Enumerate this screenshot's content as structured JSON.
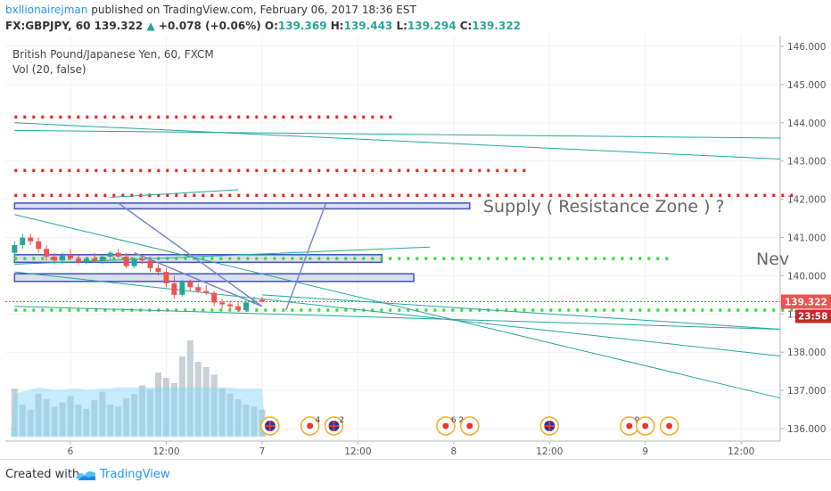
{
  "header": {
    "user": "bxllionairejman",
    "published_text": "published on TradingView.com, February 06, 2017 18:36 EST",
    "symbol": "FX:GBPJPY, 60",
    "last": "139.322",
    "change": "+0.078 (+0.06%)",
    "o_label": "O:",
    "o_val": "139.369",
    "h_label": "H:",
    "h_val": "139.443",
    "l_label": "L:",
    "l_val": "139.294",
    "c_label": "C:",
    "c_val": "139.322"
  },
  "legend": {
    "instrument": "British Pound/Japanese Yen, 60, FXCM",
    "indicator": "Vol (20, false)"
  },
  "footer": {
    "created_with": "Created with",
    "brand": "TradingView"
  },
  "colors": {
    "up": "#26a69a",
    "down": "#ef5350",
    "resistance_dots": "#ee2222",
    "support_dots": "#33dd33",
    "zone_fill": "#c5cae9",
    "zone_border": "#3f51b5",
    "trend": "#26a69a",
    "arrow": "#7986cb",
    "price_tag": "#ef5350",
    "countdown_tag": "#c62828"
  },
  "chart_data": {
    "type": "candlestick",
    "ylim": [
      135.7,
      146.3
    ],
    "y_ticks": [
      "146.000",
      "145.000",
      "144.000",
      "143.000",
      "142.000",
      "141.000",
      "140.000",
      "139.000",
      "138.000",
      "137.000",
      "136.000"
    ],
    "x_ticks": [
      "6",
      "12:00",
      "7",
      "12:00",
      "8",
      "12:00",
      "9",
      "12:00"
    ],
    "x_tick_hours": [
      0,
      12,
      24,
      36,
      48,
      60,
      72,
      84
    ],
    "last_price_tag": "139.322",
    "countdown_tag": "23:58",
    "annotations": {
      "supply_label": "Supply ( Resistance Zone ) ?",
      "cut_label": "Nev"
    },
    "candles": [
      {
        "h": -7,
        "o": 140.6,
        "hi": 140.9,
        "lo": 140.4,
        "c": 140.8
      },
      {
        "h": -6,
        "o": 140.8,
        "hi": 141.1,
        "lo": 140.7,
        "c": 141.0
      },
      {
        "h": -5,
        "o": 141.0,
        "hi": 141.1,
        "lo": 140.8,
        "c": 140.9
      },
      {
        "h": -4,
        "o": 140.9,
        "hi": 141.0,
        "lo": 140.6,
        "c": 140.7
      },
      {
        "h": -3,
        "o": 140.7,
        "hi": 140.8,
        "lo": 140.4,
        "c": 140.5
      },
      {
        "h": -2,
        "o": 140.5,
        "hi": 140.6,
        "lo": 140.3,
        "c": 140.4
      },
      {
        "h": -1,
        "o": 140.4,
        "hi": 140.6,
        "lo": 140.3,
        "c": 140.55
      },
      {
        "h": 0,
        "o": 140.55,
        "hi": 140.7,
        "lo": 140.4,
        "c": 140.45
      },
      {
        "h": 1,
        "o": 140.45,
        "hi": 140.55,
        "lo": 140.3,
        "c": 140.35
      },
      {
        "h": 2,
        "o": 140.35,
        "hi": 140.5,
        "lo": 140.3,
        "c": 140.45
      },
      {
        "h": 3,
        "o": 140.45,
        "hi": 140.6,
        "lo": 140.35,
        "c": 140.4
      },
      {
        "h": 4,
        "o": 140.4,
        "hi": 140.55,
        "lo": 140.3,
        "c": 140.5
      },
      {
        "h": 5,
        "o": 140.5,
        "hi": 140.65,
        "lo": 140.4,
        "c": 140.6
      },
      {
        "h": 6,
        "o": 140.6,
        "hi": 140.7,
        "lo": 140.45,
        "c": 140.5
      },
      {
        "h": 7,
        "o": 140.5,
        "hi": 140.6,
        "lo": 140.2,
        "c": 140.25
      },
      {
        "h": 8,
        "o": 140.25,
        "hi": 140.5,
        "lo": 140.2,
        "c": 140.45
      },
      {
        "h": 9,
        "o": 140.45,
        "hi": 140.55,
        "lo": 140.3,
        "c": 140.4
      },
      {
        "h": 10,
        "o": 140.4,
        "hi": 140.5,
        "lo": 140.1,
        "c": 140.2
      },
      {
        "h": 11,
        "o": 140.2,
        "hi": 140.3,
        "lo": 140.0,
        "c": 140.1
      },
      {
        "h": 12,
        "o": 140.1,
        "hi": 140.2,
        "lo": 139.7,
        "c": 139.8
      },
      {
        "h": 13,
        "o": 139.8,
        "hi": 140.0,
        "lo": 139.4,
        "c": 139.5
      },
      {
        "h": 14,
        "o": 139.5,
        "hi": 139.9,
        "lo": 139.45,
        "c": 139.85
      },
      {
        "h": 15,
        "o": 139.85,
        "hi": 139.9,
        "lo": 139.6,
        "c": 139.7
      },
      {
        "h": 16,
        "o": 139.7,
        "hi": 139.8,
        "lo": 139.55,
        "c": 139.6
      },
      {
        "h": 17,
        "o": 139.6,
        "hi": 139.75,
        "lo": 139.5,
        "c": 139.55
      },
      {
        "h": 18,
        "o": 139.55,
        "hi": 139.6,
        "lo": 139.2,
        "c": 139.3
      },
      {
        "h": 19,
        "o": 139.3,
        "hi": 139.4,
        "lo": 139.15,
        "c": 139.25
      },
      {
        "h": 20,
        "o": 139.25,
        "hi": 139.35,
        "lo": 139.1,
        "c": 139.2
      },
      {
        "h": 21,
        "o": 139.2,
        "hi": 139.3,
        "lo": 139.05,
        "c": 139.1
      },
      {
        "h": 22,
        "o": 139.1,
        "hi": 139.35,
        "lo": 139.05,
        "c": 139.3
      },
      {
        "h": 23,
        "o": 139.3,
        "hi": 139.45,
        "lo": 139.25,
        "c": 139.35
      },
      {
        "h": 24,
        "o": 139.369,
        "hi": 139.443,
        "lo": 139.294,
        "c": 139.322
      }
    ],
    "volume": [
      45,
      30,
      25,
      40,
      35,
      28,
      32,
      38,
      30,
      26,
      34,
      42,
      30,
      28,
      36,
      40,
      48,
      44,
      60,
      55,
      50,
      75,
      90,
      70,
      65,
      58,
      45,
      40,
      35,
      30,
      28,
      25
    ],
    "volume_max": 100,
    "resistance_levels": [
      {
        "price": 144.15,
        "from_h": -7,
        "to_h": 41
      },
      {
        "price": 142.75,
        "from_h": -7,
        "to_h": 57
      },
      {
        "price": 142.1,
        "from_h": -7,
        "to_h": 91
      }
    ],
    "support_levels": [
      {
        "price": 140.45,
        "from_h": -7,
        "to_h": 75
      },
      {
        "price": 139.1,
        "from_h": -7,
        "to_h": 91
      }
    ],
    "zones": [
      {
        "top": 141.9,
        "bottom": 141.75,
        "from_h": -7,
        "to_h": 50
      },
      {
        "top": 140.55,
        "bottom": 140.35,
        "from_h": -7,
        "to_h": 39
      },
      {
        "top": 140.05,
        "bottom": 139.85,
        "from_h": -7,
        "to_h": 43
      }
    ],
    "trendlines": [
      {
        "x1": -7,
        "y1": 143.8,
        "x2": 91,
        "y2": 143.6
      },
      {
        "x1": -7,
        "y1": 144.0,
        "x2": 91,
        "y2": 143.05
      },
      {
        "x1": 5,
        "y1": 142.05,
        "x2": 21,
        "y2": 142.25
      },
      {
        "x1": -7,
        "y1": 140.3,
        "x2": 45,
        "y2": 140.75
      },
      {
        "x1": -7,
        "y1": 141.6,
        "x2": 91,
        "y2": 136.8
      },
      {
        "x1": -7,
        "y1": 140.1,
        "x2": 91,
        "y2": 137.9
      },
      {
        "x1": 24,
        "y1": 139.5,
        "x2": 91,
        "y2": 138.6
      },
      {
        "x1": -7,
        "y1": 139.2,
        "x2": 91,
        "y2": 138.6
      }
    ],
    "arrows": [
      {
        "x1": 6,
        "y1": 141.9,
        "x2": 24,
        "y2": 139.2
      },
      {
        "x1": 8,
        "y1": 140.6,
        "x2": 24,
        "y2": 139.2
      },
      {
        "x1": 27,
        "y1": 139.1,
        "x2": 32,
        "y2": 141.9
      }
    ],
    "event_markers": [
      {
        "h": 25,
        "kind": "flag"
      },
      {
        "h": 30,
        "kind": "dot",
        "count": "4"
      },
      {
        "h": 33,
        "kind": "flag",
        "count": "2"
      },
      {
        "h": 47,
        "kind": "dot",
        "count": "6 2"
      },
      {
        "h": 50,
        "kind": "dot"
      },
      {
        "h": 60,
        "kind": "flag"
      },
      {
        "h": 70,
        "kind": "dot",
        "count": "9"
      },
      {
        "h": 72,
        "kind": "dot"
      },
      {
        "h": 75,
        "kind": "dot"
      }
    ]
  }
}
